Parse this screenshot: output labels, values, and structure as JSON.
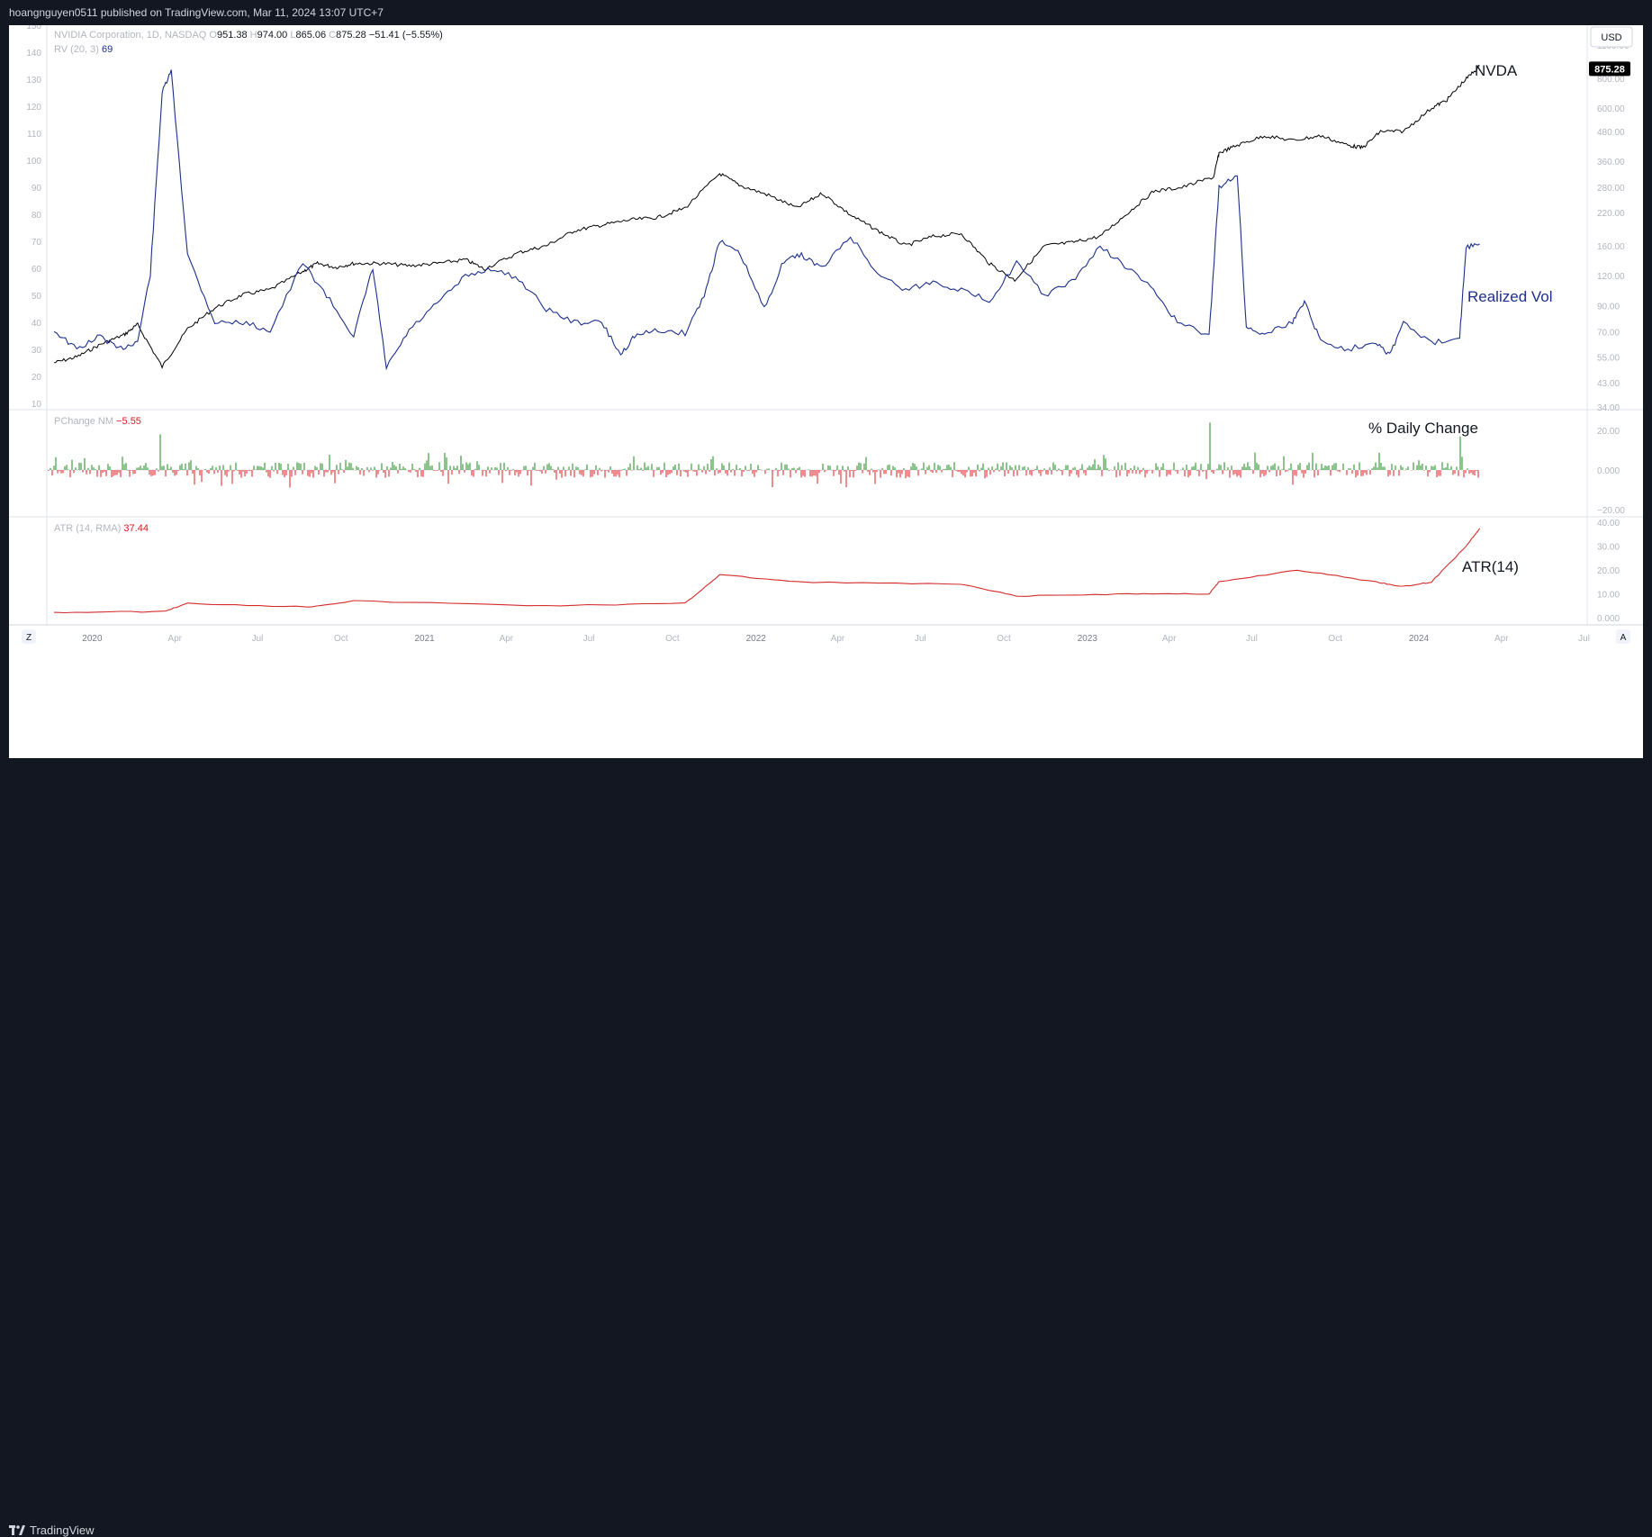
{
  "header": {
    "publish_text": "hoangnguyen0511 published on TradingView.com, Mar 11, 2024 13:07 UTC+7"
  },
  "footer": {
    "brand": "TradingView",
    "z_button": "Z",
    "a_button": "A"
  },
  "currency": "USD",
  "legend": {
    "symbol": "NVIDIA Corporation, 1D, NASDAQ",
    "o_label": "O",
    "o_value": "951.38",
    "h_label": "H",
    "h_value": "974.00",
    "l_label": "L",
    "l_value": "865.06",
    "c_label": "C",
    "c_value": "875.28",
    "change": "−51.41 (−5.55%)",
    "rv_label": "RV (20, 3)",
    "rv_value": "69",
    "pchange_label": "PChange NM",
    "pchange_value": "−5.55",
    "atr_label": "ATR (14, RMA)",
    "atr_value": "37.44"
  },
  "annotations": {
    "nvda": "NVDA",
    "realized_vol": "Realized Vol",
    "daily_change": "% Daily Change",
    "atr": "ATR(14)"
  },
  "price_tag": "875.28",
  "colors": {
    "background": "#131722",
    "panel": "#ffffff",
    "price": "#000000",
    "rv": "#1c2f8c",
    "up": "#1b8a1b",
    "down": "#e0181f",
    "atr": "#d42b2b",
    "axis_text": "#b2b5be",
    "grid_sep": "#e0e3eb"
  },
  "chart_data": [
    {
      "type": "line",
      "title": "NVIDIA Corporation, 1D, NASDAQ",
      "scale": "log",
      "series": [
        {
          "name": "NVDA",
          "x": [
            "2019-11-20",
            "2019-12-15",
            "2020-01-10",
            "2020-02-05",
            "2020-02-20",
            "2020-03-18",
            "2020-04-15",
            "2020-05-15",
            "2020-06-15",
            "2020-07-15",
            "2020-08-20",
            "2020-09-05",
            "2020-09-25",
            "2020-10-15",
            "2020-11-15",
            "2020-12-15",
            "2021-01-15",
            "2021-02-15",
            "2021-03-08",
            "2021-04-15",
            "2021-05-15",
            "2021-06-15",
            "2021-07-15",
            "2021-08-15",
            "2021-09-15",
            "2021-10-15",
            "2021-11-22",
            "2021-12-15",
            "2022-01-15",
            "2022-02-15",
            "2022-03-15",
            "2022-04-15",
            "2022-05-15",
            "2022-06-15",
            "2022-07-15",
            "2022-08-15",
            "2022-09-15",
            "2022-10-13",
            "2022-11-15",
            "2022-12-15",
            "2023-01-15",
            "2023-02-15",
            "2023-03-15",
            "2023-04-15",
            "2023-05-20",
            "2023-05-26",
            "2023-06-15",
            "2023-07-15",
            "2023-08-15",
            "2023-09-15",
            "2023-10-15",
            "2023-10-31",
            "2023-11-20",
            "2023-12-15",
            "2024-01-15",
            "2024-02-01",
            "2024-02-20",
            "2024-03-08"
          ],
          "values": [
            52,
            55,
            62,
            68,
            75,
            50,
            72,
            88,
            100,
            105,
            125,
            135,
            130,
            135,
            135,
            132,
            135,
            140,
            128,
            150,
            160,
            185,
            195,
            205,
            210,
            230,
            320,
            285,
            260,
            230,
            265,
            215,
            185,
            160,
            175,
            180,
            135,
            115,
            160,
            165,
            175,
            220,
            270,
            280,
            310,
            390,
            420,
            460,
            440,
            460,
            420,
            410,
            480,
            480,
            600,
            650,
            780,
            900
          ]
        },
        {
          "name": "Realized Vol",
          "x": [
            "2019-11-20",
            "2019-12-15",
            "2020-01-10",
            "2020-01-30",
            "2020-02-20",
            "2020-03-05",
            "2020-03-18",
            "2020-03-28",
            "2020-04-15",
            "2020-05-15",
            "2020-06-15",
            "2020-07-15",
            "2020-08-20",
            "2020-09-15",
            "2020-10-15",
            "2020-11-05",
            "2020-11-20",
            "2020-12-15",
            "2021-01-15",
            "2021-02-15",
            "2021-03-15",
            "2021-04-15",
            "2021-05-15",
            "2021-06-15",
            "2021-07-15",
            "2021-08-05",
            "2021-08-20",
            "2021-09-15",
            "2021-10-15",
            "2021-11-05",
            "2021-11-22",
            "2021-12-15",
            "2022-01-10",
            "2022-02-01",
            "2022-02-20",
            "2022-03-15",
            "2022-04-15",
            "2022-05-15",
            "2022-06-15",
            "2022-07-15",
            "2022-08-15",
            "2022-09-15",
            "2022-10-15",
            "2022-11-15",
            "2022-12-15",
            "2023-01-15",
            "2023-02-15",
            "2023-03-15",
            "2023-04-10",
            "2023-05-15",
            "2023-05-26",
            "2023-06-15",
            "2023-06-25",
            "2023-07-15",
            "2023-08-15",
            "2023-08-28",
            "2023-09-15",
            "2023-10-15",
            "2023-11-15",
            "2023-11-30",
            "2023-12-15",
            "2024-01-15",
            "2024-02-15",
            "2024-02-22",
            "2024-03-08"
          ],
          "values": [
            37,
            30,
            35,
            30,
            33,
            58,
            125,
            133,
            65,
            40,
            40,
            37,
            62,
            50,
            35,
            60,
            23,
            37,
            47,
            57,
            60,
            56,
            45,
            40,
            40,
            28,
            35,
            37,
            36,
            50,
            70,
            65,
            45,
            63,
            65,
            60,
            72,
            58,
            52,
            55,
            52,
            48,
            62,
            50,
            55,
            68,
            60,
            52,
            40,
            35,
            90,
            95,
            38,
            36,
            40,
            48,
            33,
            30,
            33,
            28,
            40,
            32,
            35,
            68,
            69
          ]
        },
        {
          "name": "% Daily Change",
          "x": [
            "2019-11",
            "2020-03",
            "2021-11",
            "2023-05",
            "2024-02",
            "2024-03-08"
          ],
          "values": [
            1,
            18,
            7,
            24,
            17,
            -5.55
          ]
        },
        {
          "name": "ATR(14)",
          "x": [
            "2019-11-20",
            "2020-03-20",
            "2020-04-15",
            "2020-08-25",
            "2020-10-15",
            "2021-05-15",
            "2021-10-15",
            "2021-11-22",
            "2022-02-15",
            "2022-08-15",
            "2022-10-15",
            "2023-02-15",
            "2023-05-15",
            "2023-05-26",
            "2023-08-20",
            "2023-11-15",
            "2023-12-15",
            "2024-01-15",
            "2024-02-22",
            "2024-03-08"
          ],
          "values": [
            2.2,
            2.6,
            6.0,
            4.5,
            7.0,
            5.0,
            6.0,
            18,
            15,
            14,
            9,
            10,
            10,
            15,
            20,
            15,
            13,
            15,
            30,
            37.44
          ]
        }
      ],
      "x_ticks": [
        "2020",
        "Apr",
        "Jul",
        "Oct",
        "2021",
        "Apr",
        "Jul",
        "Oct",
        "2022",
        "Apr",
        "Jul",
        "Oct",
        "2023",
        "Apr",
        "Jul",
        "Oct",
        "2024",
        "Apr",
        "Jul"
      ],
      "left_ticks": [
        "150",
        "140",
        "130",
        "120",
        "110",
        "100",
        "90",
        "80",
        "70",
        "60",
        "50",
        "40",
        "30",
        "20",
        "10"
      ],
      "right_ticks": [
        "1100.00",
        "800.00",
        "600.00",
        "480.00",
        "360.00",
        "280.00",
        "220.00",
        "160.00",
        "120.00",
        "90.00",
        "70.00",
        "55.00",
        "43.00",
        "34.00"
      ],
      "pchange_ticks": [
        "20.00",
        "0.000",
        "−20.00"
      ],
      "atr_ticks": [
        "40.00",
        "30.00",
        "20.00",
        "10.00",
        "0.000"
      ]
    }
  ]
}
